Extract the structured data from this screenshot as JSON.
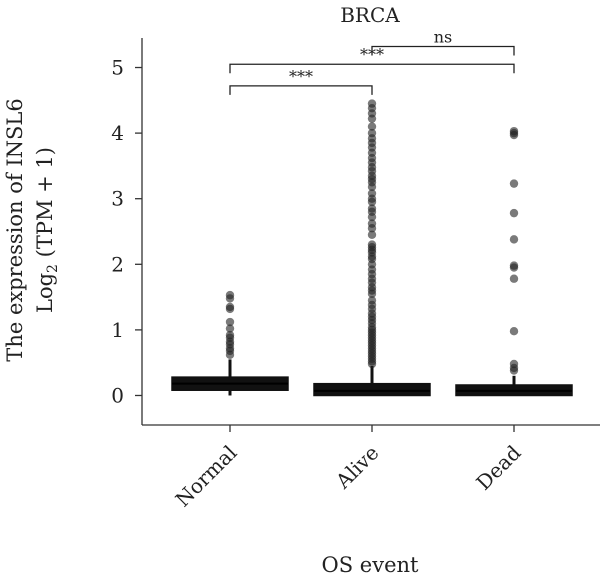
{
  "chart_data": {
    "type": "box",
    "title": "BRCA",
    "xlabel": "OS event",
    "ylabel_line1": "The expression of INSL6",
    "ylabel_line2_prefix": "Log",
    "ylabel_line2_sub": "2",
    "ylabel_line2_suffix": " (TPM + 1)",
    "ylim": [
      -0.45,
      5.45
    ],
    "yticks": [
      0,
      1,
      2,
      3,
      4,
      5
    ],
    "categories": [
      "Normal",
      "Alive",
      "Dead"
    ],
    "boxes": [
      {
        "category": "Normal",
        "q1": 0.08,
        "median": 0.18,
        "q3": 0.28,
        "whisker_low": 0.0,
        "whisker_high": 0.55,
        "outliers": [
          0.62,
          0.68,
          0.72,
          0.78,
          0.82,
          0.88,
          0.92,
          1.02,
          1.12,
          1.32,
          1.35,
          1.48,
          1.53
        ]
      },
      {
        "category": "Alive",
        "q1": 0.0,
        "median": 0.07,
        "q3": 0.18,
        "whisker_low": 0.0,
        "whisker_high": 0.45,
        "outliers": [
          0.48,
          0.52,
          0.56,
          0.6,
          0.64,
          0.68,
          0.72,
          0.76,
          0.8,
          0.84,
          0.88,
          0.92,
          0.96,
          1.0,
          1.04,
          1.1,
          1.15,
          1.2,
          1.25,
          1.32,
          1.38,
          1.45,
          1.55,
          1.6,
          1.65,
          1.72,
          1.78,
          1.85,
          1.92,
          2.0,
          2.08,
          2.12,
          2.18,
          2.22,
          2.26,
          2.3,
          2.45,
          2.55,
          2.62,
          2.72,
          2.8,
          2.85,
          2.95,
          3.0,
          3.08,
          3.18,
          3.25,
          3.3,
          3.35,
          3.42,
          3.48,
          3.55,
          3.62,
          3.7,
          3.78,
          3.85,
          3.92,
          4.0,
          4.1,
          4.22,
          4.3,
          4.38,
          4.45
        ]
      },
      {
        "category": "Dead",
        "q1": 0.0,
        "median": 0.07,
        "q3": 0.16,
        "whisker_low": 0.0,
        "whisker_high": 0.3,
        "outliers": [
          0.38,
          0.42,
          0.48,
          0.98,
          1.78,
          1.95,
          1.98,
          2.38,
          2.78,
          3.23,
          3.97,
          4.0,
          4.03
        ]
      }
    ],
    "significance": [
      {
        "from": "Normal",
        "to": "Alive",
        "label": "***",
        "y": 4.72
      },
      {
        "from": "Normal",
        "to": "Dead",
        "label": "***",
        "y": 5.05
      },
      {
        "from": "Alive",
        "to": "Dead",
        "label": "ns",
        "y": 5.32
      }
    ]
  }
}
